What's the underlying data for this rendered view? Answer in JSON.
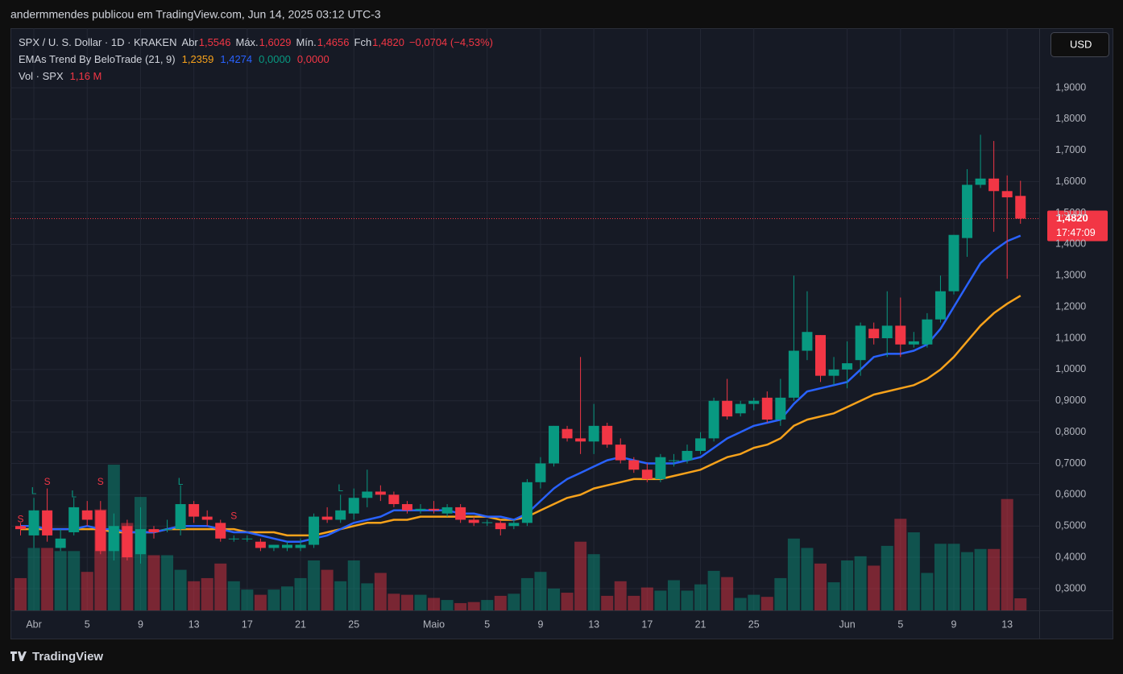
{
  "header": "andermmendes publicou em TradingView.com, Jun 14, 2025 03:12 UTC-3",
  "footer": "TradingView",
  "currency": "USD",
  "chart_data": {
    "type": "candlestick",
    "title": "SPX / U. S. Dollar · 1D · KRAKEN",
    "ohlc_legend": [
      {
        "label": "Abr",
        "value": "1,5546"
      },
      {
        "label": "Máx.",
        "value": "1,6029"
      },
      {
        "label": "Mín.",
        "value": "1,4656"
      },
      {
        "label": "Fch",
        "value": "1,4820"
      }
    ],
    "change": "−0,0704 (−4,53%)",
    "categories": [
      null,
      "Abr",
      null,
      null,
      null,
      "5",
      null,
      null,
      null,
      "9",
      null,
      null,
      null,
      "13",
      null,
      null,
      null,
      "17",
      null,
      null,
      null,
      "21",
      null,
      null,
      null,
      "25",
      null,
      null,
      null,
      null,
      null,
      "Maio",
      null,
      null,
      null,
      "5",
      null,
      null,
      null,
      "9",
      null,
      null,
      null,
      "13",
      null,
      null,
      null,
      "17",
      null,
      null,
      null,
      "21",
      null,
      null,
      null,
      "25",
      null,
      null,
      null,
      null,
      null,
      null,
      "Jun",
      null,
      null,
      null,
      "5",
      null,
      null,
      null,
      "9",
      null,
      null,
      null,
      "13",
      null
    ],
    "open": [
      0.5,
      0.47,
      0.55,
      0.43,
      0.48,
      0.55,
      0.55,
      0.42,
      0.5,
      0.41,
      0.49,
      0.49,
      0.49,
      0.57,
      0.53,
      0.51,
      0.46,
      0.46,
      0.45,
      0.43,
      0.43,
      0.43,
      0.44,
      0.53,
      0.52,
      0.54,
      0.59,
      0.61,
      0.6,
      0.57,
      0.55,
      0.555,
      0.54,
      0.56,
      0.52,
      0.51,
      0.51,
      0.5,
      0.51,
      0.64,
      0.7,
      0.81,
      0.78,
      0.77,
      0.82,
      0.76,
      0.71,
      0.68,
      0.65,
      0.71,
      0.71,
      0.74,
      0.78,
      0.9,
      0.86,
      0.89,
      0.91,
      0.84,
      0.91,
      1.06,
      1.11,
      0.98,
      1.0,
      1.03,
      1.13,
      1.1,
      1.14,
      1.08,
      1.08,
      1.16,
      1.25,
      1.42,
      1.59,
      1.61,
      1.57,
      1.5546
    ],
    "high": [
      0.51,
      0.59,
      0.62,
      0.49,
      0.59,
      0.58,
      0.58,
      0.54,
      0.52,
      0.56,
      0.5,
      0.52,
      0.63,
      0.58,
      0.55,
      0.52,
      0.47,
      0.47,
      0.46,
      0.44,
      0.45,
      0.46,
      0.54,
      0.56,
      0.6,
      0.62,
      0.68,
      0.63,
      0.61,
      0.58,
      0.57,
      0.58,
      0.57,
      0.57,
      0.53,
      0.52,
      0.52,
      0.52,
      0.65,
      0.72,
      0.82,
      0.82,
      1.04,
      0.89,
      0.83,
      0.78,
      0.72,
      0.7,
      0.73,
      0.73,
      0.76,
      0.8,
      0.91,
      0.97,
      0.9,
      0.91,
      0.93,
      0.97,
      1.3,
      1.25,
      1.11,
      1.04,
      1.09,
      1.15,
      1.15,
      1.25,
      1.23,
      1.12,
      1.18,
      1.3,
      1.43,
      1.64,
      1.75,
      1.73,
      1.62,
      1.6029
    ],
    "low": [
      0.47,
      0.43,
      0.45,
      0.42,
      0.47,
      0.5,
      0.41,
      0.39,
      0.39,
      0.38,
      0.46,
      0.48,
      0.47,
      0.51,
      0.5,
      0.45,
      0.45,
      0.45,
      0.42,
      0.42,
      0.42,
      0.42,
      0.43,
      0.51,
      0.51,
      0.52,
      0.56,
      0.58,
      0.56,
      0.54,
      0.54,
      0.54,
      0.53,
      0.51,
      0.5,
      0.5,
      0.47,
      0.49,
      0.5,
      0.62,
      0.69,
      0.77,
      0.73,
      0.73,
      0.75,
      0.7,
      0.67,
      0.64,
      0.64,
      0.69,
      0.7,
      0.73,
      0.77,
      0.84,
      0.85,
      0.87,
      0.83,
      0.82,
      0.9,
      1.03,
      0.96,
      0.95,
      0.94,
      0.98,
      1.08,
      1.04,
      1.04,
      1.07,
      1.07,
      1.15,
      1.24,
      1.36,
      1.58,
      1.44,
      1.29,
      1.4656
    ],
    "close": [
      0.49,
      0.55,
      0.47,
      0.46,
      0.56,
      0.52,
      0.42,
      0.5,
      0.4,
      0.49,
      0.48,
      0.49,
      0.57,
      0.53,
      0.52,
      0.46,
      0.46,
      0.46,
      0.43,
      0.44,
      0.44,
      0.44,
      0.53,
      0.52,
      0.55,
      0.59,
      0.61,
      0.6,
      0.57,
      0.55,
      0.555,
      0.55,
      0.56,
      0.52,
      0.51,
      0.512,
      0.49,
      0.51,
      0.64,
      0.7,
      0.82,
      0.78,
      0.77,
      0.82,
      0.76,
      0.71,
      0.68,
      0.65,
      0.72,
      0.71,
      0.74,
      0.78,
      0.9,
      0.85,
      0.89,
      0.9,
      0.84,
      0.91,
      1.06,
      1.12,
      0.98,
      1.0,
      1.02,
      1.14,
      1.1,
      1.14,
      1.08,
      1.09,
      1.16,
      1.25,
      1.43,
      1.59,
      1.61,
      1.57,
      1.55,
      1.482
    ],
    "up_color": "#089981",
    "down_color": "#f23645",
    "ylim": [
      0.2305,
      2.0904
    ],
    "yticks": [
      {
        "value": 0.3,
        "label": "0,3000"
      },
      {
        "value": 0.4,
        "label": "0,4000"
      },
      {
        "value": 0.5,
        "label": "0,5000"
      },
      {
        "value": 0.6,
        "label": "0,6000"
      },
      {
        "value": 0.7,
        "label": "0,7000"
      },
      {
        "value": 0.8,
        "label": "0,8000"
      },
      {
        "value": 0.9,
        "label": "0,9000"
      },
      {
        "value": 1.0,
        "label": "1,0000"
      },
      {
        "value": 1.1,
        "label": "1,1000"
      },
      {
        "value": 1.2,
        "label": "1,2000"
      },
      {
        "value": 1.3,
        "label": "1,3000"
      },
      {
        "value": 1.4,
        "label": "1,4000"
      },
      {
        "value": 1.5,
        "label": "1,5000"
      },
      {
        "value": 1.6,
        "label": "1,6000"
      },
      {
        "value": 1.7,
        "label": "1,7000"
      },
      {
        "value": 1.8,
        "label": "1,8000"
      },
      {
        "value": 1.9,
        "label": "1,9000"
      }
    ],
    "grid": true,
    "last_price": {
      "value": 1.482,
      "label": "1,4820",
      "countdown": "17:47:09",
      "color": "#f23645"
    },
    "indicator": {
      "title": "EMAs Trend By BeloTrade (21, 9)",
      "series": [
        {
          "color": "#f7a21b",
          "value_label": "1,2359",
          "values": [
            0.49,
            0.49,
            0.49,
            0.49,
            0.49,
            0.49,
            0.49,
            0.48,
            0.48,
            0.48,
            0.48,
            0.49,
            0.49,
            0.49,
            0.49,
            0.49,
            0.49,
            0.48,
            0.48,
            0.48,
            0.47,
            0.47,
            0.47,
            0.48,
            0.49,
            0.5,
            0.51,
            0.51,
            0.52,
            0.52,
            0.53,
            0.53,
            0.53,
            0.53,
            0.53,
            0.53,
            0.52,
            0.52,
            0.53,
            0.55,
            0.57,
            0.59,
            0.6,
            0.62,
            0.63,
            0.64,
            0.65,
            0.65,
            0.65,
            0.66,
            0.67,
            0.68,
            0.7,
            0.72,
            0.73,
            0.75,
            0.76,
            0.78,
            0.82,
            0.84,
            0.85,
            0.86,
            0.88,
            0.9,
            0.92,
            0.93,
            0.94,
            0.95,
            0.97,
            1.0,
            1.04,
            1.09,
            1.14,
            1.18,
            1.21,
            1.2359
          ]
        },
        {
          "color": "#2962ff",
          "value_label": "1,4274",
          "values": [
            0.5,
            0.5,
            0.49,
            0.49,
            0.49,
            0.5,
            0.49,
            0.49,
            0.48,
            0.48,
            0.48,
            0.49,
            0.5,
            0.5,
            0.5,
            0.49,
            0.48,
            0.48,
            0.47,
            0.46,
            0.45,
            0.45,
            0.46,
            0.47,
            0.49,
            0.51,
            0.52,
            0.53,
            0.55,
            0.55,
            0.55,
            0.55,
            0.55,
            0.54,
            0.54,
            0.53,
            0.53,
            0.52,
            0.54,
            0.58,
            0.62,
            0.65,
            0.67,
            0.69,
            0.71,
            0.72,
            0.71,
            0.7,
            0.7,
            0.7,
            0.71,
            0.72,
            0.75,
            0.78,
            0.8,
            0.82,
            0.83,
            0.84,
            0.89,
            0.93,
            0.94,
            0.95,
            0.96,
            1.0,
            1.04,
            1.05,
            1.05,
            1.06,
            1.08,
            1.13,
            1.2,
            1.27,
            1.34,
            1.38,
            1.41,
            1.4274
          ]
        }
      ],
      "other_labels": [
        {
          "text": "0,0000",
          "color": "#089981"
        },
        {
          "text": "0,0000",
          "color": "#f23645"
        }
      ]
    },
    "signals": [
      {
        "text": "S",
        "candle": 0,
        "price": 0.52,
        "color": "#f23645"
      },
      {
        "text": "L",
        "candle": 1,
        "price": 0.61,
        "color": "#089981"
      },
      {
        "text": "S",
        "candle": 2,
        "price": 0.64,
        "color": "#f23645"
      },
      {
        "text": "L",
        "candle": 4,
        "price": 0.6,
        "color": "#089981"
      },
      {
        "text": "S",
        "candle": 6,
        "price": 0.64,
        "color": "#f23645"
      },
      {
        "text": "L",
        "candle": 12,
        "price": 0.64,
        "color": "#089981"
      },
      {
        "text": "S",
        "candle": 16,
        "price": 0.53,
        "color": "#f23645"
      },
      {
        "text": "L",
        "candle": 24,
        "price": 0.62,
        "color": "#089981"
      }
    ],
    "volume": {
      "title": "Vol · SPX",
      "value_label": "1,16 M",
      "vlim": [
        0,
        40
      ],
      "values": [
        3.1,
        6.0,
        6.0,
        5.7,
        5.7,
        3.7,
        9.7,
        14.0,
        8.4,
        10.9,
        5.3,
        5.3,
        3.9,
        2.8,
        3.1,
        4.5,
        2.8,
        2.0,
        1.5,
        2.0,
        2.3,
        3.1,
        4.8,
        3.9,
        2.8,
        4.8,
        2.6,
        3.6,
        1.6,
        1.5,
        1.5,
        1.2,
        1.0,
        0.7,
        0.8,
        1.0,
        1.4,
        1.6,
        3.1,
        3.7,
        2.1,
        1.7,
        6.6,
        5.4,
        1.4,
        2.8,
        1.4,
        2.2,
        1.9,
        2.9,
        1.9,
        2.5,
        3.8,
        3.2,
        1.2,
        1.5,
        1.3,
        3.1,
        6.9,
        6.0,
        4.5,
        2.7,
        4.8,
        5.2,
        4.3,
        6.2,
        8.8,
        7.5,
        3.6,
        6.4,
        6.4,
        5.6,
        5.9,
        5.9,
        10.7,
        1.16
      ]
    }
  }
}
